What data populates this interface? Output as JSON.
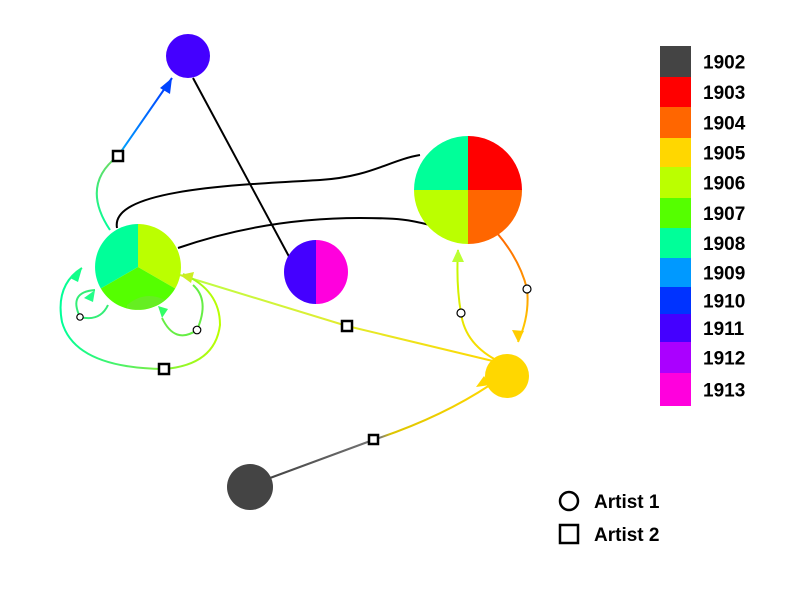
{
  "legend": {
    "years": [
      {
        "label": "1902",
        "color": "#444444"
      },
      {
        "label": "1903",
        "color": "#ff0000"
      },
      {
        "label": "1904",
        "color": "#ff6600"
      },
      {
        "label": "1905",
        "color": "#ffd700"
      },
      {
        "label": "1906",
        "color": "#bbff00"
      },
      {
        "label": "1907",
        "color": "#55ff00"
      },
      {
        "label": "1908",
        "color": "#00ff99"
      },
      {
        "label": "1909",
        "color": "#0099ff"
      },
      {
        "label": "1910",
        "color": "#0033ff"
      },
      {
        "label": "1911",
        "color": "#4400ff"
      },
      {
        "label": "1912",
        "color": "#aa00ff"
      },
      {
        "label": "1913",
        "color": "#ff00dd"
      }
    ]
  },
  "markers": {
    "circle_label": "Artist 1",
    "square_label": "Artist 2"
  },
  "colors": {
    "edge_black": "#000000",
    "edge_grey": "#444444"
  }
}
